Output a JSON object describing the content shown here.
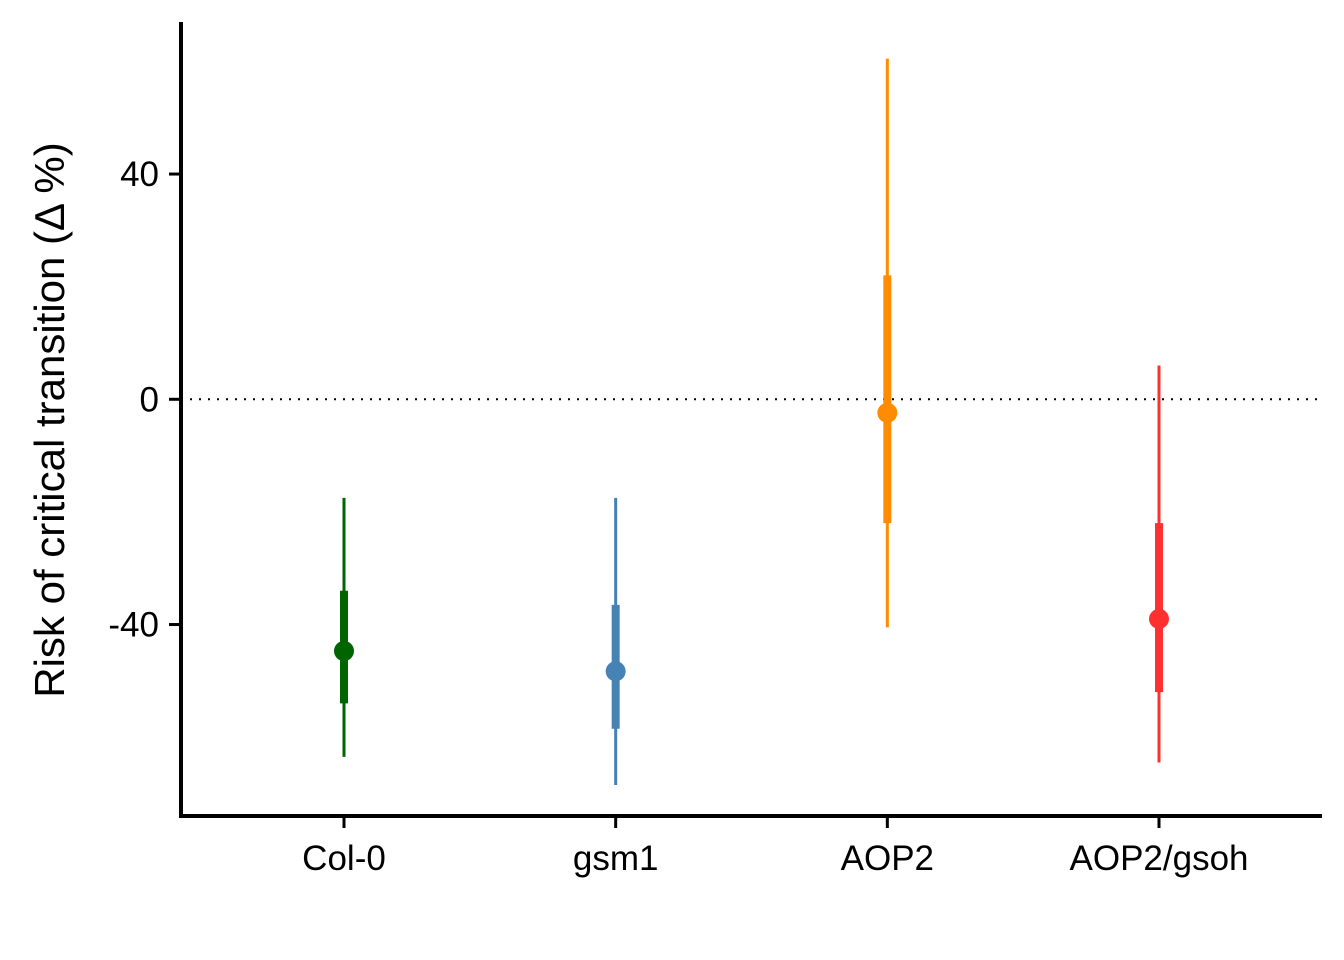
{
  "chart_data": {
    "type": "pointrange",
    "title": "",
    "xlabel": "",
    "ylabel": "Risk of critical transition (Δ %)",
    "ylim": [
      -74,
      67
    ],
    "yticks": [
      -40,
      0,
      40
    ],
    "ytick_labels": [
      "-40",
      "0",
      "40"
    ],
    "reference_line": {
      "y": 0,
      "style": "dotted"
    },
    "grid": false,
    "legend": "none",
    "categories": [
      "Col-0",
      "gsm1",
      "AOP2",
      "AOP2/gsoh"
    ],
    "colors": [
      "#006400",
      "#4682B4",
      "#FF8C00",
      "#FF3030"
    ],
    "estimate": [
      -44.7,
      -48.3,
      -2.4,
      -39.0
    ],
    "inner_interval": [
      [
        -54.0,
        -34.0
      ],
      [
        -58.5,
        -36.5
      ],
      [
        -22.0,
        22.0
      ],
      [
        -52.0,
        -22.0
      ]
    ],
    "outer_interval": [
      [
        -63.5,
        -17.5
      ],
      [
        -68.5,
        -17.5
      ],
      [
        -40.5,
        60.5
      ],
      [
        -64.5,
        6.0
      ]
    ]
  }
}
